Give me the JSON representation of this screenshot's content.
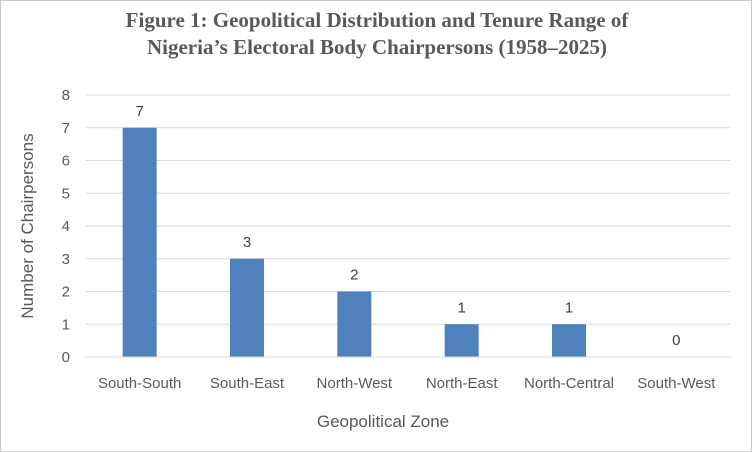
{
  "chart_data": {
    "type": "bar",
    "title": "Figure 1: Geopolitical Distribution and Tenure Range of",
    "subtitle": "Nigeria’s Electoral Body Chairpersons (1958–2025)",
    "categories": [
      "South-South",
      "South-East",
      "North-West",
      "North-East",
      "North-Central",
      "South-West"
    ],
    "values": [
      7,
      3,
      2,
      1,
      1,
      0
    ],
    "xlabel": "Geopolitical Zone",
    "ylabel": "Number of Chairpersons",
    "ylim": [
      0,
      8
    ],
    "yticks": [
      0,
      1,
      2,
      3,
      4,
      5,
      6,
      7,
      8
    ],
    "grid": true,
    "legend": "none",
    "data_labels": true,
    "colors": {
      "bar": "#4f81bd",
      "grid": "#d9d9d9",
      "text": "#595959"
    }
  }
}
